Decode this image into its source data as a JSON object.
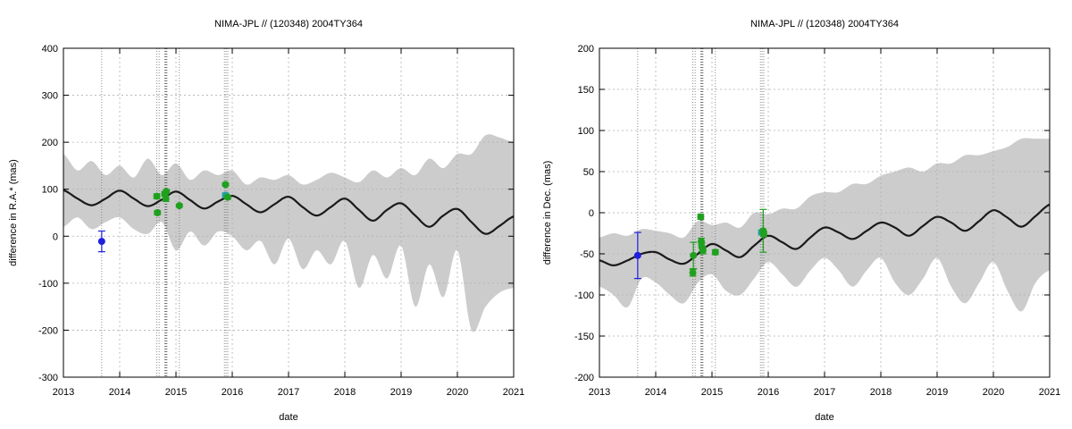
{
  "chart_data": [
    {
      "type": "line",
      "title": "NIMA-JPL // (120348) 2004TY364",
      "xlabel": "date",
      "ylabel": "difference in R.A.* (mas)",
      "xlim": [
        2013,
        2021
      ],
      "ylim": [
        -300,
        400
      ],
      "xticks": [
        2013,
        2014,
        2015,
        2016,
        2017,
        2018,
        2019,
        2020,
        2021
      ],
      "yticks": [
        -300,
        -200,
        -100,
        0,
        100,
        200,
        300,
        400
      ],
      "grid": true,
      "colors": {
        "band": "#cccccc",
        "curve": "#1a1a1a",
        "blue": "#1f1fdf",
        "green": "#1fa01f",
        "cyan": "#1f9fa0"
      },
      "model_curve": {
        "x": [
          2013.0,
          2013.25,
          2013.5,
          2013.75,
          2014.0,
          2014.25,
          2014.5,
          2014.75,
          2015.0,
          2015.25,
          2015.5,
          2015.75,
          2016.0,
          2016.25,
          2016.5,
          2016.75,
          2017.0,
          2017.25,
          2017.5,
          2017.75,
          2018.0,
          2018.25,
          2018.5,
          2018.75,
          2019.0,
          2019.25,
          2019.5,
          2019.75,
          2020.0,
          2020.25,
          2020.5,
          2020.75,
          2021.0
        ],
        "y": [
          98,
          80,
          66,
          80,
          97,
          80,
          64,
          78,
          95,
          77,
          59,
          74,
          86,
          68,
          51,
          68,
          84,
          62,
          44,
          62,
          80,
          56,
          33,
          56,
          70,
          44,
          20,
          44,
          58,
          30,
          5,
          22,
          42
        ]
      },
      "uncertainty_band": {
        "x": [
          2013.0,
          2013.25,
          2013.5,
          2013.75,
          2014.0,
          2014.25,
          2014.5,
          2014.75,
          2015.0,
          2015.25,
          2015.5,
          2015.75,
          2016.0,
          2016.25,
          2016.5,
          2016.75,
          2017.0,
          2017.25,
          2017.5,
          2017.75,
          2018.0,
          2018.25,
          2018.5,
          2018.75,
          2019.0,
          2019.25,
          2019.5,
          2019.75,
          2020.0,
          2020.25,
          2020.5,
          2020.75,
          2021.0
        ],
        "upper": [
          175,
          140,
          160,
          130,
          150,
          125,
          165,
          130,
          155,
          120,
          140,
          130,
          140,
          110,
          125,
          120,
          130,
          110,
          120,
          135,
          125,
          115,
          140,
          125,
          145,
          130,
          165,
          145,
          175,
          175,
          215,
          210,
          200
        ],
        "lower": [
          20,
          40,
          15,
          30,
          40,
          15,
          5,
          30,
          -30,
          10,
          -20,
          10,
          0,
          -30,
          -10,
          -60,
          -5,
          -70,
          -30,
          -60,
          -10,
          -110,
          -40,
          -90,
          -20,
          -150,
          -60,
          -130,
          -30,
          -200,
          -150,
          -120,
          -110
        ]
      },
      "observations": [
        {
          "x": 2013.68,
          "y": -11,
          "err": 22,
          "color": "blue"
        },
        {
          "x": 2014.66,
          "y": 85,
          "err": 5,
          "color": "green"
        },
        {
          "x": 2014.67,
          "y": 50,
          "err": 4,
          "color": "green"
        },
        {
          "x": 2014.8,
          "y": 90,
          "err": 5,
          "color": "green"
        },
        {
          "x": 2014.82,
          "y": 80,
          "err": 6,
          "color": "green"
        },
        {
          "x": 2014.83,
          "y": 95,
          "err": 4,
          "color": "green"
        },
        {
          "x": 2015.06,
          "y": 65,
          "err": 3,
          "color": "green"
        },
        {
          "x": 2015.88,
          "y": 110,
          "err": 3,
          "color": "green"
        },
        {
          "x": 2015.88,
          "y": 87,
          "err": 5,
          "color": "cyan"
        },
        {
          "x": 2015.92,
          "y": 83,
          "err": 4,
          "color": "green"
        }
      ],
      "vlines": [
        2013.68,
        2014.66,
        2014.7,
        2014.8,
        2014.81,
        2014.82,
        2014.83,
        2014.84,
        2015.06,
        2015.86,
        2015.89,
        2015.92
      ]
    },
    {
      "type": "line",
      "title": "NIMA-JPL // (120348) 2004TY364",
      "xlabel": "date",
      "ylabel": "difference in Dec. (mas)",
      "xlim": [
        2013,
        2021
      ],
      "ylim": [
        -200,
        200
      ],
      "xticks": [
        2013,
        2014,
        2015,
        2016,
        2017,
        2018,
        2019,
        2020,
        2021
      ],
      "yticks": [
        -200,
        -150,
        -100,
        -50,
        0,
        50,
        100,
        150,
        200
      ],
      "grid": true,
      "colors": {
        "band": "#cccccc",
        "curve": "#1a1a1a",
        "blue": "#1f1fdf",
        "green": "#1fa01f",
        "cyan": "#1f9fa0"
      },
      "model_curve": {
        "x": [
          2013.0,
          2013.25,
          2013.5,
          2013.75,
          2014.0,
          2014.25,
          2014.5,
          2014.75,
          2015.0,
          2015.25,
          2015.5,
          2015.75,
          2016.0,
          2016.25,
          2016.5,
          2016.75,
          2017.0,
          2017.25,
          2017.5,
          2017.75,
          2018.0,
          2018.25,
          2018.5,
          2018.75,
          2019.0,
          2019.25,
          2019.5,
          2019.75,
          2020.0,
          2020.25,
          2020.5,
          2020.75,
          2021.0
        ],
        "y": [
          -58,
          -64,
          -58,
          -50,
          -48,
          -57,
          -62,
          -50,
          -38,
          -46,
          -54,
          -40,
          -28,
          -36,
          -44,
          -30,
          -18,
          -24,
          -32,
          -22,
          -12,
          -18,
          -28,
          -16,
          -5,
          -12,
          -22,
          -10,
          3,
          -6,
          -17,
          -4,
          10
        ]
      },
      "uncertainty_band": {
        "x": [
          2013.0,
          2013.25,
          2013.5,
          2013.75,
          2014.0,
          2014.25,
          2014.5,
          2014.75,
          2015.0,
          2015.25,
          2015.5,
          2015.75,
          2016.0,
          2016.25,
          2016.5,
          2016.75,
          2017.0,
          2017.25,
          2017.5,
          2017.75,
          2018.0,
          2018.25,
          2018.5,
          2018.75,
          2019.0,
          2019.25,
          2019.5,
          2019.75,
          2020.0,
          2020.25,
          2020.5,
          2020.75,
          2021.0
        ],
        "upper": [
          -30,
          -25,
          -28,
          -20,
          -22,
          -25,
          -30,
          -10,
          -15,
          -12,
          -18,
          0,
          -2,
          5,
          5,
          20,
          25,
          25,
          35,
          35,
          45,
          50,
          55,
          50,
          60,
          60,
          70,
          70,
          75,
          80,
          90,
          90,
          90
        ],
        "lower": [
          -90,
          -100,
          -115,
          -80,
          -85,
          -100,
          -110,
          -85,
          -75,
          -95,
          -100,
          -80,
          -60,
          -75,
          -90,
          -70,
          -55,
          -70,
          -90,
          -70,
          -55,
          -85,
          -100,
          -80,
          -55,
          -90,
          -110,
          -85,
          -60,
          -95,
          -120,
          -85,
          -70
        ]
      },
      "observations": [
        {
          "x": 2013.68,
          "y": -52,
          "err": 28,
          "color": "blue"
        },
        {
          "x": 2014.66,
          "y": -73,
          "err": 4,
          "color": "green"
        },
        {
          "x": 2014.67,
          "y": -52,
          "err": 16,
          "color": "green"
        },
        {
          "x": 2014.8,
          "y": -5,
          "err": 3,
          "color": "green"
        },
        {
          "x": 2014.81,
          "y": -35,
          "err": 4,
          "color": "green"
        },
        {
          "x": 2014.82,
          "y": -42,
          "err": 5,
          "color": "green"
        },
        {
          "x": 2014.84,
          "y": -46,
          "err": 4,
          "color": "green"
        },
        {
          "x": 2015.06,
          "y": -48,
          "err": 3,
          "color": "green"
        },
        {
          "x": 2015.88,
          "y": -24,
          "err": 3,
          "color": "cyan"
        },
        {
          "x": 2015.91,
          "y": -22,
          "err": 26,
          "color": "green"
        },
        {
          "x": 2015.92,
          "y": -26,
          "err": 3,
          "color": "green"
        }
      ],
      "vlines": [
        2013.68,
        2014.66,
        2014.7,
        2014.8,
        2014.81,
        2014.82,
        2014.83,
        2014.84,
        2015.06,
        2015.86,
        2015.89,
        2015.92
      ]
    }
  ]
}
